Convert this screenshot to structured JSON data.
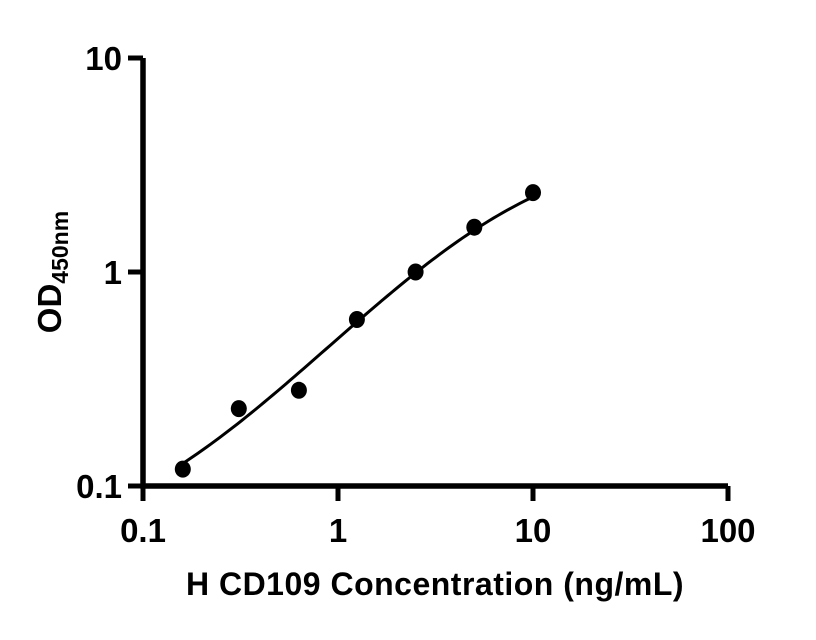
{
  "chart_data": {
    "type": "scatter",
    "title": "",
    "xlabel": "H CD109 Concentration (ng/mL)",
    "ylabel": "OD",
    "ylabel_subscript": "450nm",
    "x_scale": "log",
    "y_scale": "log",
    "xlim": [
      0.1,
      100
    ],
    "ylim": [
      0.1,
      10
    ],
    "x_ticks": [
      0.1,
      1,
      10,
      100
    ],
    "x_tick_labels": [
      "0.1",
      "1",
      "10",
      "100"
    ],
    "y_ticks": [
      0.1,
      1,
      10
    ],
    "y_tick_labels": [
      "0.1",
      "1",
      "10"
    ],
    "grid": false,
    "legend": null,
    "points": [
      {
        "x": 0.16,
        "y": 0.12
      },
      {
        "x": 0.31,
        "y": 0.23
      },
      {
        "x": 0.63,
        "y": 0.28
      },
      {
        "x": 1.25,
        "y": 0.6
      },
      {
        "x": 2.5,
        "y": 1.0
      },
      {
        "x": 5.0,
        "y": 1.62
      },
      {
        "x": 10.0,
        "y": 2.35
      }
    ],
    "fit_curve": {
      "model": "4PL",
      "bottom": 0.05,
      "top": 4.0,
      "ec50": 8.0,
      "hill": 1.0,
      "x_start": 0.155,
      "x_end": 10.0
    },
    "marker_color": "#000000",
    "line_color": "#000000",
    "axis_color": "#000000",
    "background": "#ffffff"
  }
}
